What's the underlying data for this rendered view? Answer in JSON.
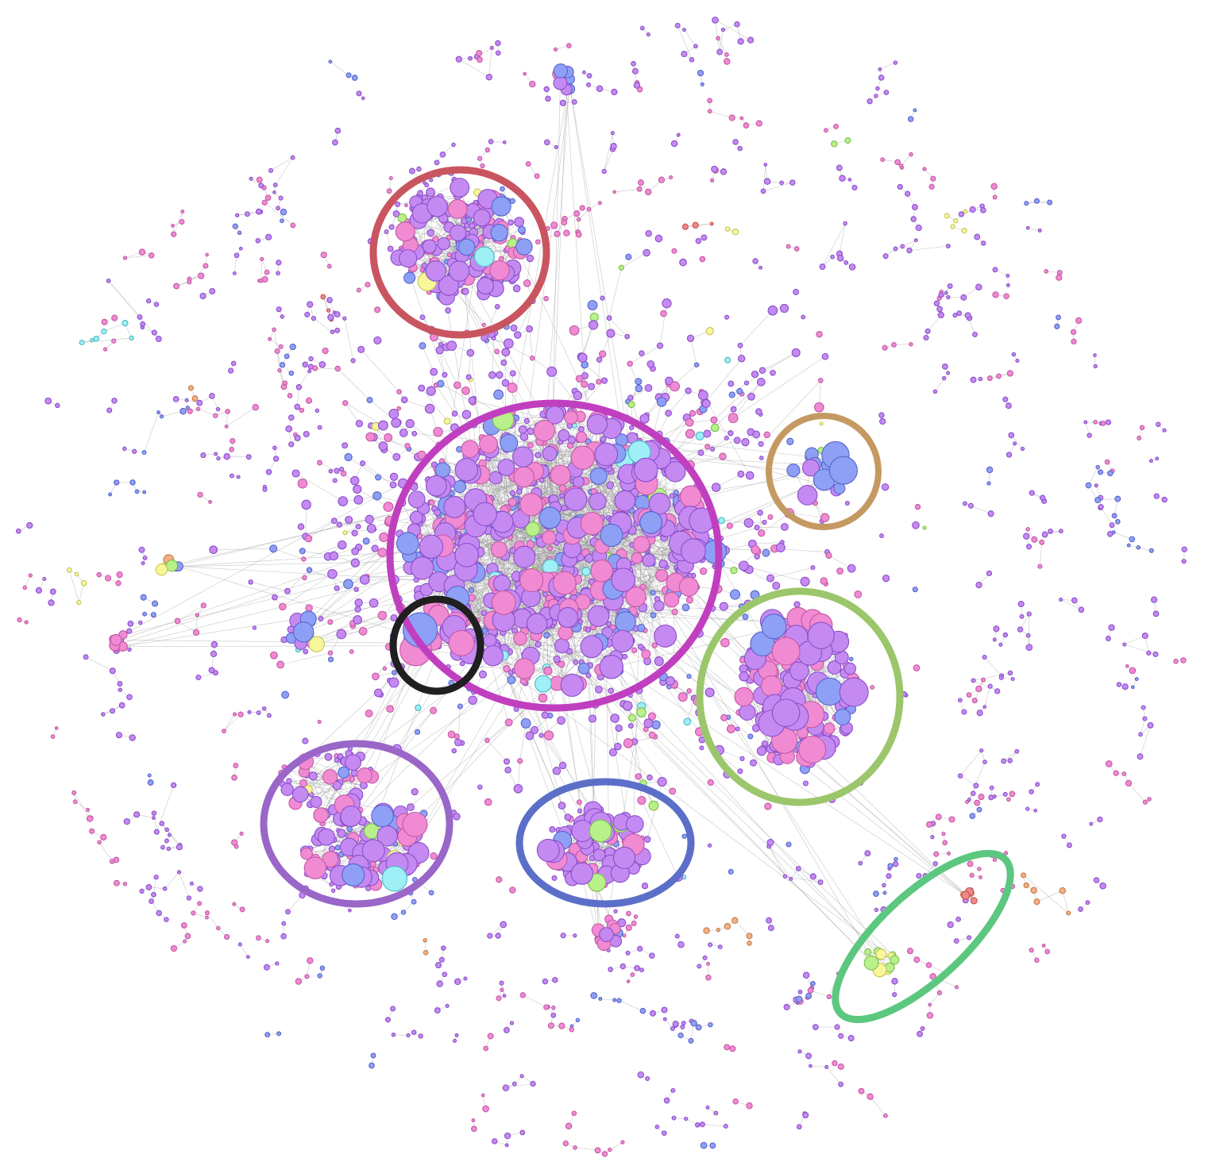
{
  "graph": {
    "background": "#ffffff",
    "node_palette": [
      {
        "fill": "#c58af2",
        "stroke": "#8a4fc9"
      },
      {
        "fill": "#f08ad2",
        "stroke": "#c25aa6"
      },
      {
        "fill": "#8ea0f6",
        "stroke": "#5a63c9"
      },
      {
        "fill": "#9ef0f6",
        "stroke": "#4ab8c4"
      },
      {
        "fill": "#f7f79a",
        "stroke": "#c4c45a"
      },
      {
        "fill": "#b8f08a",
        "stroke": "#7cbf4d"
      },
      {
        "fill": "#f4b083",
        "stroke": "#c47a4a"
      },
      {
        "fill": "#f08a8a",
        "stroke": "#c45252"
      }
    ],
    "edge_color": "#9a9a9a",
    "highlighted_communities": [
      {
        "name": "community-red",
        "color": "#c95560"
      },
      {
        "name": "community-magenta",
        "color": "#c03fbf"
      },
      {
        "name": "community-tan",
        "color": "#c49a62"
      },
      {
        "name": "community-black",
        "color": "#1f1f1f"
      },
      {
        "name": "community-light-green",
        "color": "#9cc66b"
      },
      {
        "name": "community-purple",
        "color": "#9a66c8"
      },
      {
        "name": "community-blue",
        "color": "#5c6fc8"
      },
      {
        "name": "community-green",
        "color": "#5cc77f"
      }
    ]
  }
}
